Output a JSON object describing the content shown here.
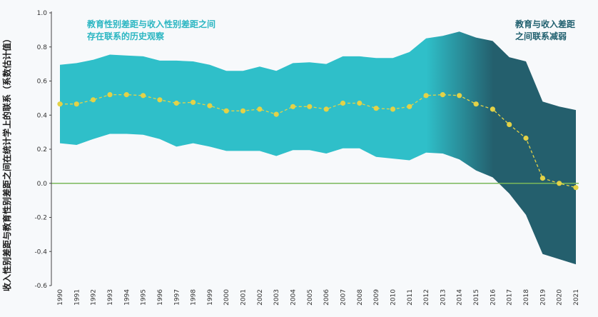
{
  "colors": {
    "band_light": "#2fbfc9",
    "band_dark": "#245f6d",
    "point": "#e3d247",
    "zero_line": "#7ab85a",
    "axis": "#444444"
  },
  "chart_data": {
    "type": "line",
    "ylabel": "收入性别差距与教育性别差距之间在统计学上的联系（系数估计值）",
    "xlabel": "",
    "ylim": [
      -0.6,
      1.0
    ],
    "yticks": [
      "1.0",
      "0.8",
      "0.6",
      "0.4",
      "0.2",
      "0.0",
      "-0.2",
      "-0.4",
      "-0.6"
    ],
    "ytick_values": [
      1.0,
      0.8,
      0.6,
      0.4,
      0.2,
      0.0,
      -0.2,
      -0.4,
      -0.6
    ],
    "x": [
      "1990",
      "1991",
      "1992",
      "1993",
      "1994",
      "1995",
      "1996",
      "1997",
      "1998",
      "1999",
      "2000",
      "2001",
      "2002",
      "2003",
      "2004",
      "2005",
      "2006",
      "2007",
      "2008",
      "2009",
      "2010",
      "2011",
      "2012",
      "2013",
      "2014",
      "2015",
      "2016",
      "2017",
      "2018",
      "2019",
      "2020",
      "2021"
    ],
    "series": [
      {
        "values": [
          0.465,
          0.465,
          0.49,
          0.52,
          0.52,
          0.515,
          0.49,
          0.47,
          0.475,
          0.455,
          0.425,
          0.425,
          0.435,
          0.405,
          0.45,
          0.45,
          0.435,
          0.47,
          0.47,
          0.44,
          0.435,
          0.45,
          0.515,
          0.52,
          0.515,
          0.465,
          0.435,
          0.345,
          0.265,
          0.03,
          0.0,
          -0.025
        ],
        "upper": [
          0.695,
          0.705,
          0.725,
          0.755,
          0.75,
          0.745,
          0.72,
          0.72,
          0.715,
          0.695,
          0.66,
          0.66,
          0.685,
          0.66,
          0.705,
          0.71,
          0.7,
          0.745,
          0.745,
          0.735,
          0.735,
          0.77,
          0.85,
          0.865,
          0.89,
          0.855,
          0.835,
          0.74,
          0.715,
          0.48,
          0.45,
          0.43
        ],
        "lower": [
          0.235,
          0.225,
          0.26,
          0.29,
          0.29,
          0.285,
          0.26,
          0.215,
          0.235,
          0.215,
          0.19,
          0.19,
          0.19,
          0.16,
          0.195,
          0.195,
          0.175,
          0.205,
          0.205,
          0.155,
          0.145,
          0.135,
          0.18,
          0.175,
          0.14,
          0.075,
          0.035,
          -0.06,
          -0.185,
          -0.415,
          -0.445,
          -0.475
        ]
      }
    ],
    "annotations": [
      {
        "lines": [
          "教育性别差距与收入性别差距之间",
          "存在联系的历史观察"
        ]
      },
      {
        "lines": [
          "教育与收入差距",
          "之间联系减弱"
        ]
      }
    ]
  }
}
